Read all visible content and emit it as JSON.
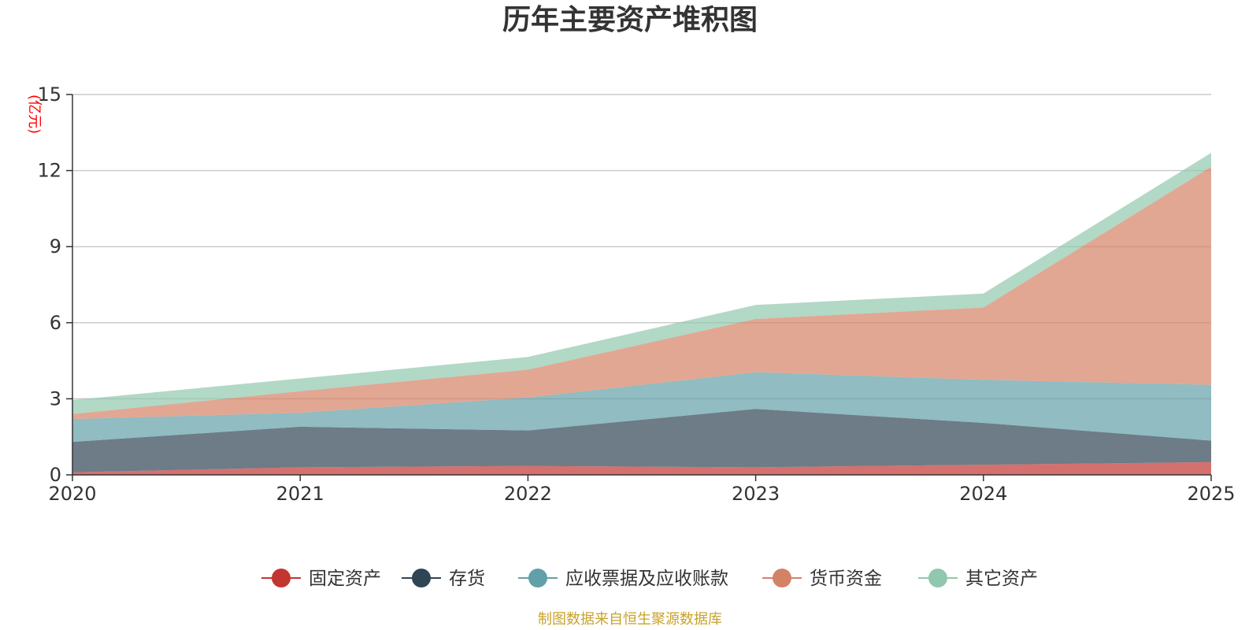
{
  "chart_data": {
    "type": "area",
    "stacked": true,
    "title": "历年主要资产堆积图",
    "unit_label": "(亿元)",
    "x": [
      "2020",
      "2021",
      "2022",
      "2023",
      "2024",
      "2025"
    ],
    "ylim": [
      0,
      15
    ],
    "yticks": [
      "0",
      "3",
      "6",
      "9",
      "12",
      "15"
    ],
    "grid": true,
    "legend_position": "bottom-center",
    "series": [
      {
        "name": "固定资产",
        "color": "#c23531",
        "values": [
          0.1,
          0.3,
          0.35,
          0.3,
          0.4,
          0.5
        ]
      },
      {
        "name": "存货",
        "color": "#2f4554",
        "values": [
          1.2,
          1.6,
          1.4,
          2.3,
          1.65,
          0.85
        ]
      },
      {
        "name": "应收票据及应收账款",
        "color": "#61a0a8",
        "values": [
          0.9,
          0.55,
          1.3,
          1.45,
          1.7,
          2.2
        ]
      },
      {
        "name": "货币资金",
        "color": "#d48265",
        "values": [
          0.2,
          0.85,
          1.1,
          2.1,
          2.85,
          8.6
        ]
      },
      {
        "name": "其它资产",
        "color": "#91c7ae",
        "values": [
          0.55,
          0.5,
          0.5,
          0.55,
          0.55,
          0.55
        ]
      }
    ],
    "unit_color": "#ff0000"
  },
  "footer": {
    "text": "制图数据来自恒生聚源数据库",
    "color": "#c9a227"
  }
}
